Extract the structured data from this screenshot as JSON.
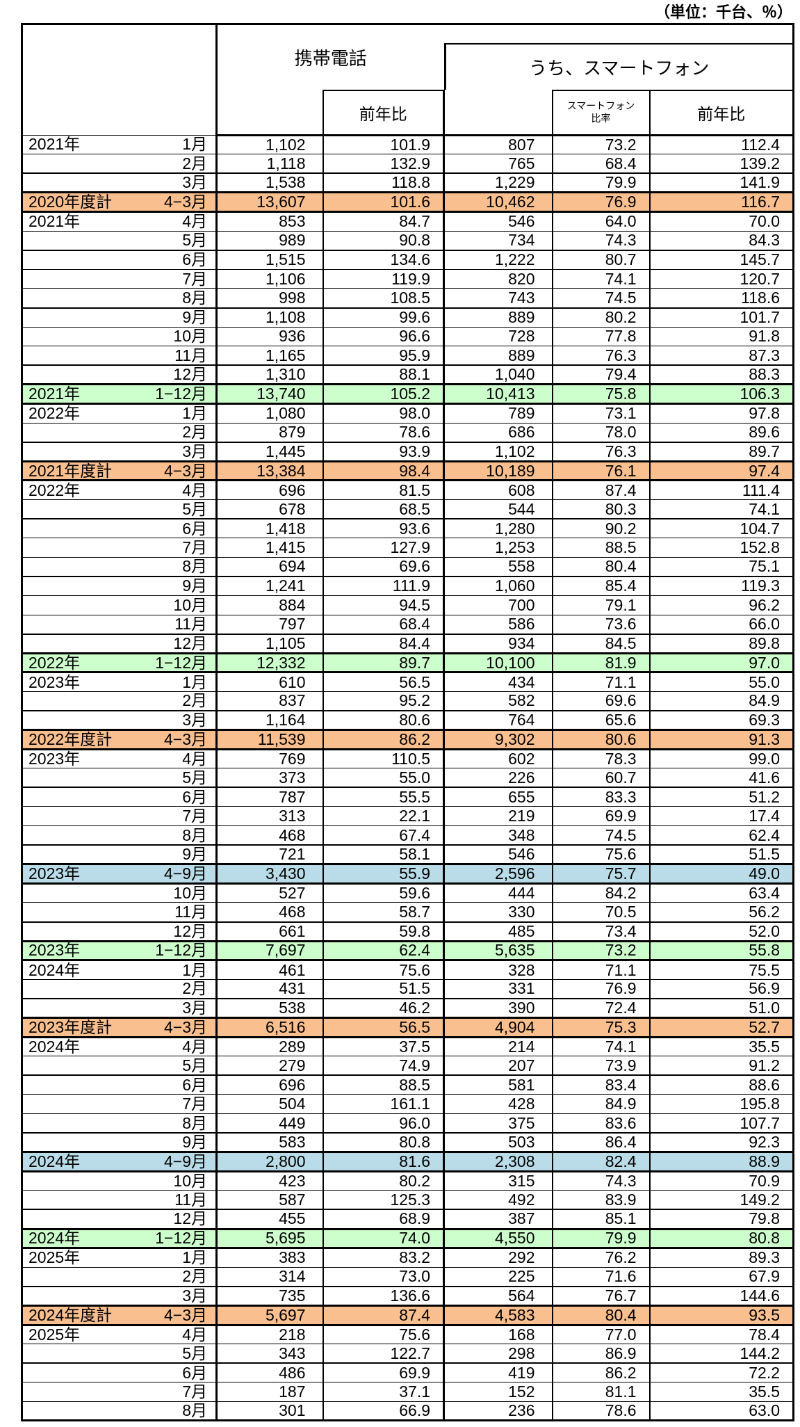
{
  "unit_note": "（単位：千台、％）",
  "header": {
    "phone_group": "携帯電話",
    "sp_group": "うち、スマートフォン",
    "phone_yoy": "前年比",
    "sp_ratio_line1": "スマートフォン",
    "sp_ratio_line2": "比率",
    "sp_yoy": "前年比"
  },
  "colors": {
    "fiscal_total_bg": "#FABF8F",
    "calendar_total_bg": "#CCFFCC",
    "half_total_bg": "#B9DCE8"
  },
  "rows": [
    {
      "y": "2021年",
      "m": "1月",
      "v": [
        "1,102",
        "101.9",
        "807",
        "73.2",
        "112.4"
      ]
    },
    {
      "m": "2月",
      "v": [
        "1,118",
        "132.9",
        "765",
        "68.4",
        "139.2"
      ]
    },
    {
      "m": "3月",
      "v": [
        "1,538",
        "118.8",
        "1,229",
        "79.9",
        "141.9"
      ]
    },
    {
      "y": "2020年度計",
      "m": "4−3月",
      "t": "fiscal",
      "v": [
        "13,607",
        "101.6",
        "10,462",
        "76.9",
        "116.7"
      ]
    },
    {
      "y": "2021年",
      "m": "4月",
      "v": [
        "853",
        "84.7",
        "546",
        "64.0",
        "70.0"
      ]
    },
    {
      "m": "5月",
      "v": [
        "989",
        "90.8",
        "734",
        "74.3",
        "84.3"
      ]
    },
    {
      "m": "6月",
      "v": [
        "1,515",
        "134.6",
        "1,222",
        "80.7",
        "145.7"
      ]
    },
    {
      "m": "7月",
      "v": [
        "1,106",
        "119.9",
        "820",
        "74.1",
        "120.7"
      ]
    },
    {
      "m": "8月",
      "v": [
        "998",
        "108.5",
        "743",
        "74.5",
        "118.6"
      ]
    },
    {
      "m": "9月",
      "v": [
        "1,108",
        "99.6",
        "889",
        "80.2",
        "101.7"
      ]
    },
    {
      "m": "10月",
      "v": [
        "936",
        "96.6",
        "728",
        "77.8",
        "91.8"
      ]
    },
    {
      "m": "11月",
      "v": [
        "1,165",
        "95.9",
        "889",
        "76.3",
        "87.3"
      ]
    },
    {
      "m": "12月",
      "v": [
        "1,310",
        "88.1",
        "1,040",
        "79.4",
        "88.3"
      ]
    },
    {
      "y": "2021年",
      "m": "1−12月",
      "t": "calendar",
      "v": [
        "13,740",
        "105.2",
        "10,413",
        "75.8",
        "106.3"
      ]
    },
    {
      "y": "2022年",
      "m": "1月",
      "v": [
        "1,080",
        "98.0",
        "789",
        "73.1",
        "97.8"
      ]
    },
    {
      "m": "2月",
      "v": [
        "879",
        "78.6",
        "686",
        "78.0",
        "89.6"
      ]
    },
    {
      "m": "3月",
      "v": [
        "1,445",
        "93.9",
        "1,102",
        "76.3",
        "89.7"
      ]
    },
    {
      "y": "2021年度計",
      "m": "4−3月",
      "t": "fiscal",
      "v": [
        "13,384",
        "98.4",
        "10,189",
        "76.1",
        "97.4"
      ]
    },
    {
      "y": "2022年",
      "m": "4月",
      "v": [
        "696",
        "81.5",
        "608",
        "87.4",
        "111.4"
      ]
    },
    {
      "m": "5月",
      "v": [
        "678",
        "68.5",
        "544",
        "80.3",
        "74.1"
      ]
    },
    {
      "m": "6月",
      "v": [
        "1,418",
        "93.6",
        "1,280",
        "90.2",
        "104.7"
      ]
    },
    {
      "m": "7月",
      "v": [
        "1,415",
        "127.9",
        "1,253",
        "88.5",
        "152.8"
      ]
    },
    {
      "m": "8月",
      "v": [
        "694",
        "69.6",
        "558",
        "80.4",
        "75.1"
      ]
    },
    {
      "m": "9月",
      "v": [
        "1,241",
        "111.9",
        "1,060",
        "85.4",
        "119.3"
      ]
    },
    {
      "m": "10月",
      "v": [
        "884",
        "94.5",
        "700",
        "79.1",
        "96.2"
      ]
    },
    {
      "m": "11月",
      "v": [
        "797",
        "68.4",
        "586",
        "73.6",
        "66.0"
      ]
    },
    {
      "m": "12月",
      "v": [
        "1,105",
        "84.4",
        "934",
        "84.5",
        "89.8"
      ]
    },
    {
      "y": "2022年",
      "m": "1−12月",
      "t": "calendar",
      "v": [
        "12,332",
        "89.7",
        "10,100",
        "81.9",
        "97.0"
      ]
    },
    {
      "y": "2023年",
      "m": "1月",
      "v": [
        "610",
        "56.5",
        "434",
        "71.1",
        "55.0"
      ]
    },
    {
      "m": "2月",
      "v": [
        "837",
        "95.2",
        "582",
        "69.6",
        "84.9"
      ]
    },
    {
      "m": "3月",
      "v": [
        "1,164",
        "80.6",
        "764",
        "65.6",
        "69.3"
      ]
    },
    {
      "y": "2022年度計",
      "m": "4−3月",
      "t": "fiscal",
      "v": [
        "11,539",
        "86.2",
        "9,302",
        "80.6",
        "91.3"
      ]
    },
    {
      "y": "2023年",
      "m": "4月",
      "v": [
        "769",
        "110.5",
        "602",
        "78.3",
        "99.0"
      ]
    },
    {
      "m": "5月",
      "v": [
        "373",
        "55.0",
        "226",
        "60.7",
        "41.6"
      ]
    },
    {
      "m": "6月",
      "v": [
        "787",
        "55.5",
        "655",
        "83.3",
        "51.2"
      ]
    },
    {
      "m": "7月",
      "v": [
        "313",
        "22.1",
        "219",
        "69.9",
        "17.4"
      ]
    },
    {
      "m": "8月",
      "v": [
        "468",
        "67.4",
        "348",
        "74.5",
        "62.4"
      ]
    },
    {
      "m": "9月",
      "v": [
        "721",
        "58.1",
        "546",
        "75.6",
        "51.5"
      ]
    },
    {
      "y": "2023年",
      "m": "4−9月",
      "t": "half",
      "v": [
        "3,430",
        "55.9",
        "2,596",
        "75.7",
        "49.0"
      ]
    },
    {
      "m": "10月",
      "v": [
        "527",
        "59.6",
        "444",
        "84.2",
        "63.4"
      ]
    },
    {
      "m": "11月",
      "v": [
        "468",
        "58.7",
        "330",
        "70.5",
        "56.2"
      ]
    },
    {
      "m": "12月",
      "v": [
        "661",
        "59.8",
        "485",
        "73.4",
        "52.0"
      ]
    },
    {
      "y": "2023年",
      "m": "1−12月",
      "t": "calendar",
      "v": [
        "7,697",
        "62.4",
        "5,635",
        "73.2",
        "55.8"
      ]
    },
    {
      "y": "2024年",
      "m": "1月",
      "v": [
        "461",
        "75.6",
        "328",
        "71.1",
        "75.5"
      ]
    },
    {
      "m": "2月",
      "v": [
        "431",
        "51.5",
        "331",
        "76.9",
        "56.9"
      ]
    },
    {
      "m": "3月",
      "v": [
        "538",
        "46.2",
        "390",
        "72.4",
        "51.0"
      ]
    },
    {
      "y": "2023年度計",
      "m": "4−3月",
      "t": "fiscal",
      "v": [
        "6,516",
        "56.5",
        "4,904",
        "75.3",
        "52.7"
      ]
    },
    {
      "y": "2024年",
      "m": "4月",
      "v": [
        "289",
        "37.5",
        "214",
        "74.1",
        "35.5"
      ]
    },
    {
      "m": "5月",
      "v": [
        "279",
        "74.9",
        "207",
        "73.9",
        "91.2"
      ]
    },
    {
      "m": "6月",
      "v": [
        "696",
        "88.5",
        "581",
        "83.4",
        "88.6"
      ]
    },
    {
      "m": "7月",
      "v": [
        "504",
        "161.1",
        "428",
        "84.9",
        "195.8"
      ]
    },
    {
      "m": "8月",
      "v": [
        "449",
        "96.0",
        "375",
        "83.6",
        "107.7"
      ]
    },
    {
      "m": "9月",
      "v": [
        "583",
        "80.8",
        "503",
        "86.4",
        "92.3"
      ]
    },
    {
      "y": "2024年",
      "m": "4−9月",
      "t": "half",
      "v": [
        "2,800",
        "81.6",
        "2,308",
        "82.4",
        "88.9"
      ]
    },
    {
      "m": "10月",
      "v": [
        "423",
        "80.2",
        "315",
        "74.3",
        "70.9"
      ]
    },
    {
      "m": "11月",
      "v": [
        "587",
        "125.3",
        "492",
        "83.9",
        "149.2"
      ]
    },
    {
      "m": "12月",
      "v": [
        "455",
        "68.9",
        "387",
        "85.1",
        "79.8"
      ]
    },
    {
      "y": "2024年",
      "m": "1−12月",
      "t": "calendar",
      "v": [
        "5,695",
        "74.0",
        "4,550",
        "79.9",
        "80.8"
      ]
    },
    {
      "y": "2025年",
      "m": "1月",
      "v": [
        "383",
        "83.2",
        "292",
        "76.2",
        "89.3"
      ]
    },
    {
      "m": "2月",
      "v": [
        "314",
        "73.0",
        "225",
        "71.6",
        "67.9"
      ]
    },
    {
      "m": "3月",
      "v": [
        "735",
        "136.6",
        "564",
        "76.7",
        "144.6"
      ]
    },
    {
      "y": "2024年度計",
      "m": "4−3月",
      "t": "fiscal",
      "v": [
        "5,697",
        "87.4",
        "4,583",
        "80.4",
        "93.5"
      ]
    },
    {
      "y": "2025年",
      "m": "4月",
      "v": [
        "218",
        "75.6",
        "168",
        "77.0",
        "78.4"
      ]
    },
    {
      "m": "5月",
      "v": [
        "343",
        "122.7",
        "298",
        "86.9",
        "144.2"
      ]
    },
    {
      "m": "6月",
      "v": [
        "486",
        "69.9",
        "419",
        "86.2",
        "72.2"
      ]
    },
    {
      "m": "7月",
      "v": [
        "187",
        "37.1",
        "152",
        "81.1",
        "35.5"
      ]
    },
    {
      "m": "8月",
      "v": [
        "301",
        "66.9",
        "236",
        "78.6",
        "63.0"
      ]
    }
  ]
}
